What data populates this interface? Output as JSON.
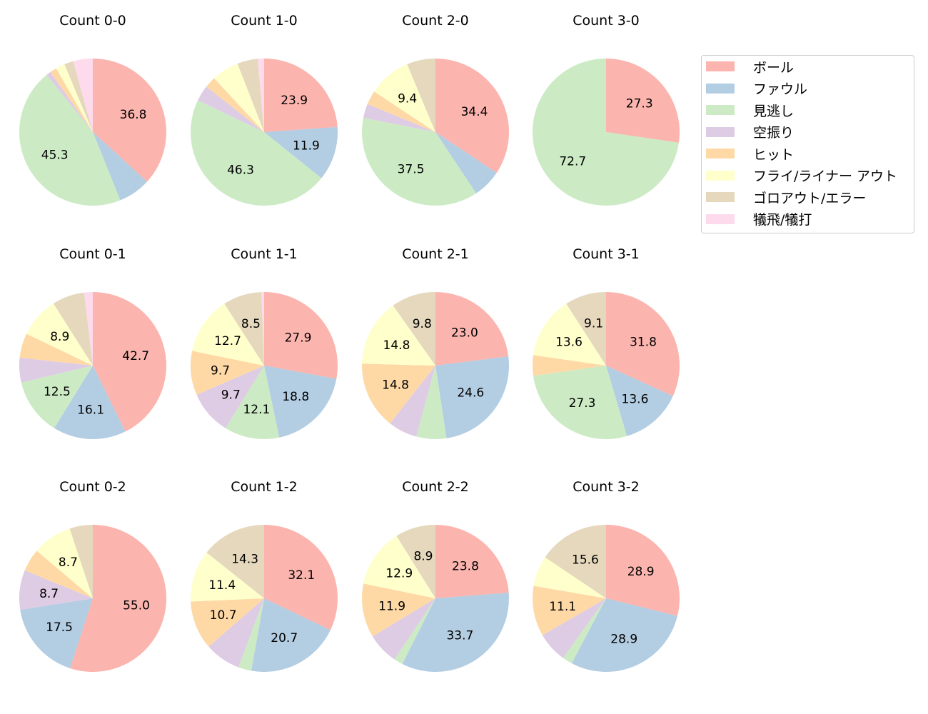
{
  "chart_data": {
    "type": "pie",
    "legend_placement": "upper-right",
    "labels": [
      "ボール",
      "ファウル",
      "見逃し",
      "空振り",
      "ヒット",
      "フライ/ライナー アウト",
      "ゴロアウト/エラー",
      "犠飛/犠打"
    ],
    "colors": [
      "#fbb4ae",
      "#b3cde3",
      "#ccebc5",
      "#decbe4",
      "#fed9a6",
      "#ffffcc",
      "#e5d8bd",
      "#fddaec"
    ],
    "charts": [
      {
        "title": "Count 0-0",
        "values": [
          36.8,
          7.1,
          45.3,
          1.0,
          1.5,
          2.0,
          2.0,
          4.3
        ]
      },
      {
        "title": "Count 1-0",
        "values": [
          23.9,
          11.9,
          46.3,
          3.5,
          2.5,
          6.0,
          4.5,
          1.4
        ]
      },
      {
        "title": "Count 2-0",
        "values": [
          34.4,
          6.3,
          37.5,
          3.1,
          3.1,
          9.4,
          6.3,
          0
        ]
      },
      {
        "title": "Count 3-0",
        "values": [
          27.3,
          0,
          72.7,
          0,
          0,
          0,
          0,
          0
        ]
      },
      {
        "title": "Count 0-1",
        "values": [
          42.7,
          16.1,
          12.5,
          5.4,
          5.4,
          8.9,
          7.1,
          1.9
        ]
      },
      {
        "title": "Count 1-1",
        "values": [
          27.9,
          18.8,
          12.1,
          9.7,
          9.7,
          12.7,
          8.5,
          0.6
        ]
      },
      {
        "title": "Count 2-1",
        "values": [
          23.0,
          24.6,
          6.6,
          6.4,
          14.8,
          14.8,
          9.8,
          0
        ]
      },
      {
        "title": "Count 3-1",
        "values": [
          31.8,
          13.6,
          27.3,
          0,
          4.5,
          13.6,
          9.1,
          0
        ]
      },
      {
        "title": "Count 0-2",
        "values": [
          55.0,
          17.5,
          0,
          8.7,
          5.0,
          8.7,
          5.1,
          0
        ]
      },
      {
        "title": "Count 1-2",
        "values": [
          32.1,
          20.7,
          2.9,
          7.9,
          10.7,
          11.4,
          14.3,
          0
        ]
      },
      {
        "title": "Count 2-2",
        "values": [
          23.8,
          33.7,
          2.0,
          6.9,
          11.9,
          12.9,
          8.9,
          0
        ]
      },
      {
        "title": "Count 3-2",
        "values": [
          28.9,
          28.9,
          2.2,
          6.7,
          11.1,
          6.7,
          15.6,
          0
        ]
      }
    ]
  }
}
